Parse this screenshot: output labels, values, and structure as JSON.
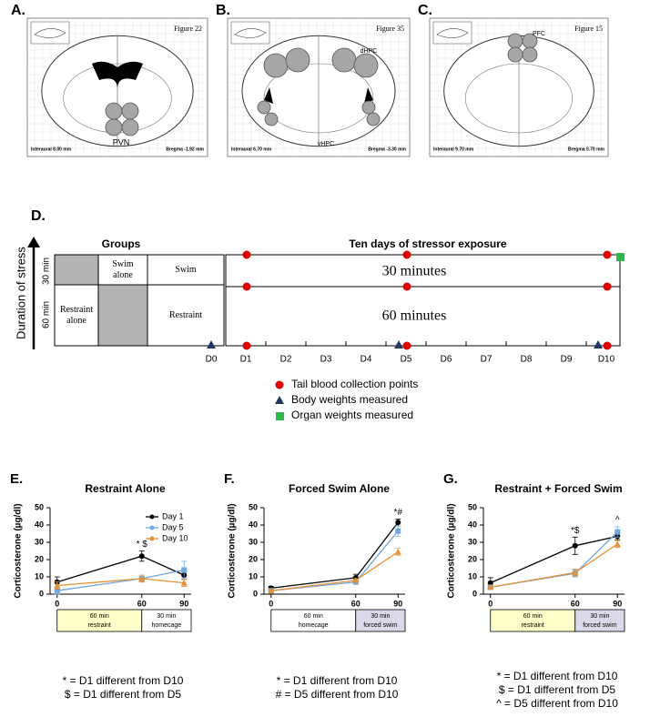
{
  "panels": [
    {
      "label": "A.",
      "figure": "Figure 22",
      "regions": [
        "PVN"
      ],
      "interaural": "Interaural 8.00 mm",
      "bregma": "Bregma -1.92 mm"
    },
    {
      "label": "B.",
      "figure": "Figure 35",
      "regions": [
        "dHPC",
        "vHPC"
      ],
      "interaural": "Interaural 6.70 mm",
      "bregma": "Bregma -3.30 mm"
    },
    {
      "label": "C.",
      "figure": "Figure 15",
      "regions": [
        "PFC"
      ],
      "interaural": "Interaural 9.70 mm",
      "bregma": "Bregma 5.70 mm"
    }
  ],
  "design": {
    "label": "D.",
    "axis_label": "Duration of stress",
    "durations": [
      "30 min",
      "60 min"
    ],
    "groups_title": "Groups",
    "groups": [
      [
        "Swim alone",
        "Swim"
      ],
      [
        "Restraint alone",
        "Restraint"
      ]
    ],
    "timeline_title": "Ten days of stressor exposure",
    "rows": [
      "30 minutes",
      "60 minutes"
    ],
    "days": [
      "D0",
      "D1",
      "D2",
      "D3",
      "D4",
      "D5",
      "D6",
      "D7",
      "D8",
      "D9",
      "D10"
    ],
    "legend": [
      "Tail blood collection points",
      "Body weights measured",
      "Organ weights measured"
    ]
  },
  "chart_data": [
    {
      "type": "line",
      "panel_label": "E.",
      "title": "Restraint Alone",
      "y_label": "Corticosterone (µg/dl)",
      "x": [
        0,
        60,
        90
      ],
      "xlim": [
        -5,
        95
      ],
      "xticks": [
        0,
        60,
        90
      ],
      "ylim": [
        0,
        50
      ],
      "yticks": [
        0,
        10,
        20,
        30,
        40,
        50
      ],
      "legend": true,
      "series": [
        {
          "name": "Day 1",
          "color": "#000000",
          "marker": "circle",
          "values": [
            7,
            22,
            11
          ],
          "errors": [
            3,
            3,
            2
          ]
        },
        {
          "name": "Day 5",
          "color": "#6fa8dc",
          "marker": "square",
          "values": [
            2,
            9,
            14
          ],
          "errors": [
            2,
            2,
            5
          ]
        },
        {
          "name": "Day 10",
          "color": "#e69138",
          "marker": "triangle",
          "values": [
            5,
            9,
            6.5
          ],
          "errors": [
            2,
            2,
            2
          ]
        }
      ],
      "annotations": [
        {
          "x": 60,
          "text": "* $"
        }
      ],
      "conditions": [
        {
          "text": [
            "60 min",
            "restraint"
          ],
          "color": "#ffffcc"
        },
        {
          "text": [
            "30 min",
            "homecage"
          ],
          "color": "#ffffff"
        }
      ],
      "notes": [
        "* = D1 different from D10",
        "$ = D1 different from D5"
      ]
    },
    {
      "type": "line",
      "panel_label": "F.",
      "title": "Forced  Swim Alone",
      "y_label": "Corticosterone (µg/dl)",
      "x": [
        0,
        60,
        90
      ],
      "xlim": [
        -5,
        95
      ],
      "xticks": [
        0,
        60,
        90
      ],
      "ylim": [
        0,
        50
      ],
      "yticks": [
        0,
        10,
        20,
        30,
        40,
        50
      ],
      "legend": false,
      "series": [
        {
          "name": "Day 1",
          "color": "#000000",
          "marker": "circle",
          "values": [
            3.5,
            9.5,
            41.5
          ],
          "errors": [
            1,
            2,
            2
          ]
        },
        {
          "name": "Day 5",
          "color": "#6fa8dc",
          "marker": "square",
          "values": [
            2,
            7,
            36.5
          ],
          "errors": [
            1,
            1,
            3
          ]
        },
        {
          "name": "Day 10",
          "color": "#e69138",
          "marker": "triangle",
          "values": [
            2,
            8,
            24.5
          ],
          "errors": [
            1,
            1,
            2
          ]
        }
      ],
      "annotations": [
        {
          "x": 90,
          "text": "*#"
        }
      ],
      "conditions": [
        {
          "text": [
            "60 min",
            "homecage"
          ],
          "color": "#ffffff"
        },
        {
          "text": [
            "30 min",
            "forced swim"
          ],
          "color": "#d9d9ea"
        }
      ],
      "notes": [
        "* = D1 different from D10",
        "# = D5 different from D10"
      ]
    },
    {
      "type": "line",
      "panel_label": "G.",
      "title": "Restraint + Forced Swim",
      "y_label": "Corticosterone (µg/dl)",
      "x": [
        0,
        60,
        90
      ],
      "xlim": [
        -5,
        95
      ],
      "xticks": [
        0,
        60,
        90
      ],
      "ylim": [
        0,
        50
      ],
      "yticks": [
        0,
        10,
        20,
        30,
        40,
        50
      ],
      "legend": false,
      "series": [
        {
          "name": "Day 1",
          "color": "#000000",
          "marker": "circle",
          "values": [
            6.5,
            28,
            33.5
          ],
          "errors": [
            3,
            5,
            2
          ]
        },
        {
          "name": "Day 5",
          "color": "#6fa8dc",
          "marker": "square",
          "values": [
            4,
            12,
            36
          ],
          "errors": [
            1,
            2,
            3
          ]
        },
        {
          "name": "Day 10",
          "color": "#e69138",
          "marker": "triangle",
          "values": [
            4,
            12.5,
            29
          ],
          "errors": [
            1,
            2,
            2
          ]
        }
      ],
      "annotations": [
        {
          "x": 60,
          "text": "*$"
        },
        {
          "x": 90,
          "text": "^"
        }
      ],
      "conditions": [
        {
          "text": [
            "60 min",
            "restraint"
          ],
          "color": "#ffffcc"
        },
        {
          "text": [
            "30 min",
            "forced swim"
          ],
          "color": "#d9d9ea"
        }
      ],
      "notes": [
        "* = D1 different from D10",
        "$ = D1 different from D5",
        "^ = D5 different from D10"
      ]
    }
  ]
}
